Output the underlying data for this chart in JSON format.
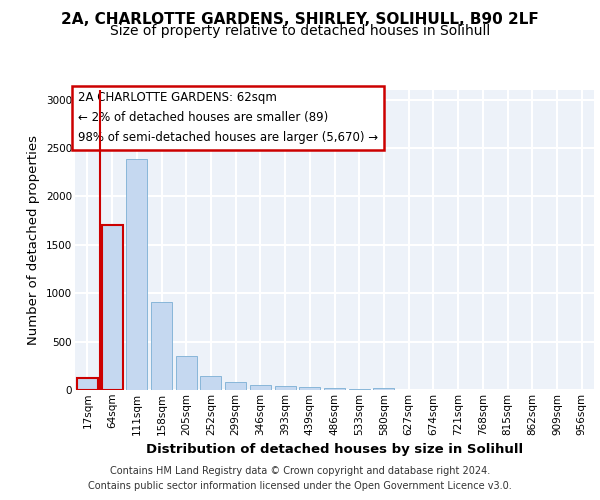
{
  "title_line1": "2A, CHARLOTTE GARDENS, SHIRLEY, SOLIHULL, B90 2LF",
  "title_line2": "Size of property relative to detached houses in Solihull",
  "xlabel": "Distribution of detached houses by size in Solihull",
  "ylabel": "Number of detached properties",
  "footer_line1": "Contains HM Land Registry data © Crown copyright and database right 2024.",
  "footer_line2": "Contains public sector information licensed under the Open Government Licence v3.0.",
  "annotation_line1": "2A CHARLOTTE GARDENS: 62sqm",
  "annotation_line2": "← 2% of detached houses are smaller (89)",
  "annotation_line3": "98% of semi-detached houses are larger (5,670) →",
  "bar_labels": [
    "17sqm",
    "64sqm",
    "111sqm",
    "158sqm",
    "205sqm",
    "252sqm",
    "299sqm",
    "346sqm",
    "393sqm",
    "439sqm",
    "486sqm",
    "533sqm",
    "580sqm",
    "627sqm",
    "674sqm",
    "721sqm",
    "768sqm",
    "815sqm",
    "862sqm",
    "909sqm",
    "956sqm"
  ],
  "bar_values": [
    125,
    1700,
    2390,
    910,
    355,
    145,
    85,
    55,
    42,
    30,
    20,
    12,
    25,
    0,
    0,
    0,
    0,
    0,
    0,
    0,
    0
  ],
  "bar_color": "#c5d8f0",
  "bar_edge_color": "#7bafd4",
  "red_edge_indices": [
    0,
    1
  ],
  "red_color": "#cc0000",
  "vline_pos": 0.5,
  "ylim": [
    0,
    3100
  ],
  "yticks": [
    0,
    500,
    1000,
    1500,
    2000,
    2500,
    3000
  ],
  "background_color": "#edf2f9",
  "grid_color": "#ffffff",
  "title_fontsize": 11,
  "subtitle_fontsize": 10,
  "axis_label_fontsize": 9.5,
  "tick_fontsize": 7.5,
  "footer_fontsize": 7,
  "annot_fontsize": 8.5
}
